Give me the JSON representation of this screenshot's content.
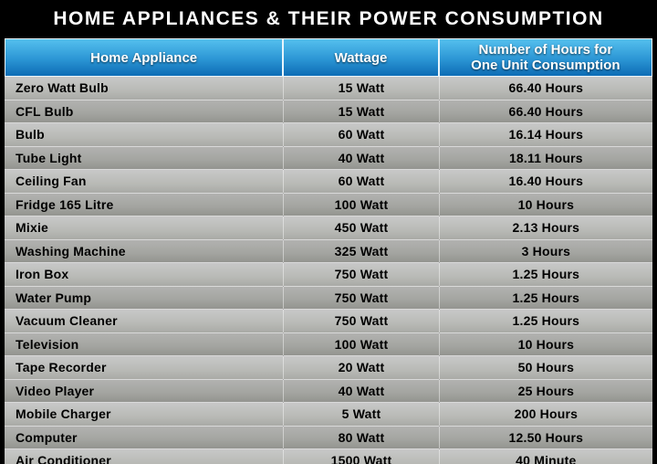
{
  "title": "HOME APPLIANCES & THEIR POWER CONSUMPTION",
  "header": {
    "col1": "Home Appliance",
    "col2": "Wattage",
    "col3": "Number of Hours for\nOne Unit Consumption"
  },
  "colors": {
    "background": "#000000",
    "title_text": "#ffffff",
    "header_gradient_top": "#55c0ee",
    "header_gradient_bottom": "#0d6cb5",
    "header_text": "#ffffff",
    "row_light": "#c0c0bd",
    "row_dark": "#a0a19c",
    "body_text": "#000000",
    "bottom_bar": "#1b3048"
  },
  "chart_data": {
    "type": "table",
    "title": "HOME APPLIANCES & THEIR POWER CONSUMPTION",
    "columns": [
      "Home Appliance",
      "Wattage",
      "Number of Hours for One Unit Consumption"
    ],
    "rows": [
      [
        "Zero Watt Bulb",
        "15 Watt",
        "66.40 Hours"
      ],
      [
        "CFL Bulb",
        "15 Watt",
        "66.40 Hours"
      ],
      [
        "Bulb",
        "60 Watt",
        "16.14 Hours"
      ],
      [
        "Tube Light",
        "40 Watt",
        "18.11 Hours"
      ],
      [
        "Ceiling Fan",
        "60 Watt",
        "16.40 Hours"
      ],
      [
        "Fridge 165 Litre",
        "100 Watt",
        "10 Hours"
      ],
      [
        "Mixie",
        "450 Watt",
        "2.13 Hours"
      ],
      [
        "Washing Machine",
        "325 Watt",
        "3 Hours"
      ],
      [
        "Iron Box",
        "750 Watt",
        "1.25 Hours"
      ],
      [
        "Water Pump",
        "750 Watt",
        "1.25 Hours"
      ],
      [
        "Vacuum Cleaner",
        "750 Watt",
        "1.25 Hours"
      ],
      [
        "Television",
        "100 Watt",
        "10 Hours"
      ],
      [
        "Tape Recorder",
        "20 Watt",
        "50 Hours"
      ],
      [
        "Video Player",
        "40 Watt",
        "25 Hours"
      ],
      [
        "Mobile Charger",
        "5 Watt",
        "200 Hours"
      ],
      [
        "Computer",
        "80 Watt",
        "12.50 Hours"
      ],
      [
        "Air Conditioner",
        "1500 Watt",
        "40 Minute"
      ]
    ]
  }
}
